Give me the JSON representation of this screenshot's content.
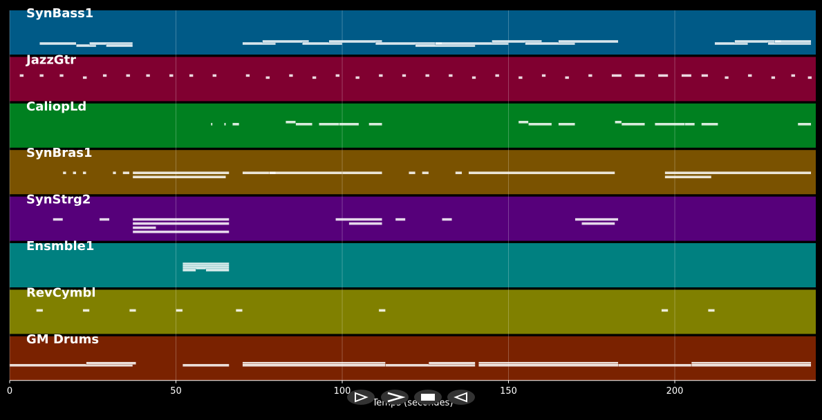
{
  "chart_data": {
    "type": "pianoroll",
    "xlabel": "Temps (secondes)",
    "xlim": [
      0,
      242.4
    ],
    "xticks": [
      0,
      50,
      100,
      150,
      200
    ],
    "grid": true,
    "tracks": [
      {
        "name": "SynBass1",
        "color": "#005a87",
        "notes": [
          [
            9,
            20,
            2
          ],
          [
            20,
            26,
            1
          ],
          [
            24,
            37,
            2
          ],
          [
            29,
            37,
            1
          ],
          [
            70,
            80,
            2
          ],
          [
            76,
            90,
            3
          ],
          [
            88,
            100,
            2
          ],
          [
            96,
            112,
            3
          ],
          [
            110,
            130,
            2
          ],
          [
            122,
            140,
            1
          ],
          [
            128,
            150,
            2
          ],
          [
            145,
            160,
            3
          ],
          [
            155,
            170,
            2
          ],
          [
            165,
            183,
            3
          ],
          [
            212,
            222,
            2
          ],
          [
            218,
            232,
            3
          ],
          [
            228,
            241,
            2
          ],
          [
            230,
            241,
            3
          ]
        ]
      },
      {
        "name": "JazzGtr",
        "color": "#800030",
        "notes": [
          [
            3,
            4.2,
            9
          ],
          [
            9,
            10.2,
            9
          ],
          [
            15,
            16.2,
            9
          ],
          [
            22,
            23.2,
            8
          ],
          [
            28,
            29.2,
            9
          ],
          [
            35,
            36.2,
            9
          ],
          [
            41,
            42.2,
            9
          ],
          [
            48,
            49.2,
            9
          ],
          [
            54,
            55.2,
            9
          ],
          [
            61,
            62.2,
            9
          ],
          [
            71,
            72.2,
            9
          ],
          [
            77,
            78.2,
            8
          ],
          [
            84,
            85.2,
            9
          ],
          [
            91,
            92.2,
            8
          ],
          [
            98,
            99.2,
            9
          ],
          [
            104,
            105.2,
            8
          ],
          [
            111,
            112.2,
            9
          ],
          [
            118,
            119.2,
            9
          ],
          [
            125,
            126.2,
            9
          ],
          [
            132,
            133.2,
            9
          ],
          [
            139,
            140.2,
            8
          ],
          [
            146,
            147.2,
            9
          ],
          [
            153,
            154.2,
            8
          ],
          [
            160,
            161.2,
            9
          ],
          [
            167,
            168.2,
            8
          ],
          [
            174,
            175.2,
            9
          ],
          [
            181,
            184,
            9
          ],
          [
            188,
            191,
            9
          ],
          [
            195,
            198,
            9
          ],
          [
            202,
            205,
            9
          ],
          [
            208,
            210,
            9
          ],
          [
            215,
            216.2,
            8
          ],
          [
            222,
            223.2,
            9
          ],
          [
            229,
            230.2,
            8
          ],
          [
            235,
            236.2,
            9
          ],
          [
            240,
            241.2,
            8
          ]
        ]
      },
      {
        "name": "CaliopLd",
        "color": "#008020",
        "notes": [
          [
            60.5,
            61,
            8
          ],
          [
            64.5,
            65,
            8
          ],
          [
            67,
            69,
            8
          ],
          [
            83,
            86,
            9
          ],
          [
            86,
            91,
            8
          ],
          [
            93,
            99,
            8
          ],
          [
            99,
            105,
            8
          ],
          [
            108,
            112,
            8
          ],
          [
            153,
            156,
            9
          ],
          [
            156,
            163,
            8
          ],
          [
            165,
            170,
            8
          ],
          [
            182,
            184,
            9
          ],
          [
            184,
            191,
            8
          ],
          [
            194,
            203,
            8
          ],
          [
            203,
            206,
            8
          ],
          [
            208,
            213,
            8
          ],
          [
            237,
            241,
            8
          ]
        ]
      },
      {
        "name": "SynBras1",
        "color": "#7a5200",
        "notes": [
          [
            16,
            17,
            7
          ],
          [
            19,
            20,
            7
          ],
          [
            22,
            23,
            7
          ],
          [
            31,
            32,
            7
          ],
          [
            34,
            36,
            7
          ],
          [
            37,
            65,
            5
          ],
          [
            37,
            66,
            7
          ],
          [
            70,
            80,
            7
          ],
          [
            78,
            100,
            7
          ],
          [
            100,
            112,
            7
          ],
          [
            120,
            122,
            7
          ],
          [
            124,
            126,
            7
          ],
          [
            134,
            136,
            7
          ],
          [
            138,
            182,
            7
          ],
          [
            197,
            211,
            5
          ],
          [
            197,
            241,
            7
          ]
        ]
      },
      {
        "name": "SynStrg2",
        "color": "#56007a",
        "notes": [
          [
            13,
            16,
            7
          ],
          [
            27,
            30,
            7
          ],
          [
            37,
            66,
            7
          ],
          [
            37,
            66,
            5
          ],
          [
            37,
            44,
            3
          ],
          [
            37,
            66,
            1
          ],
          [
            98,
            112,
            7
          ],
          [
            102,
            112,
            5
          ],
          [
            116,
            119,
            7
          ],
          [
            130,
            133,
            7
          ],
          [
            170,
            183,
            7
          ],
          [
            172,
            182,
            5
          ]
        ]
      },
      {
        "name": "Ensmble1",
        "color": "#008080",
        "notes": [
          [
            52,
            66,
            8
          ],
          [
            52,
            66,
            7
          ],
          [
            52,
            66,
            6
          ],
          [
            52,
            56,
            5
          ],
          [
            59,
            66,
            5
          ]
        ]
      },
      {
        "name": "RevCymbl",
        "color": "#808000",
        "notes": [
          [
            8,
            10,
            8
          ],
          [
            22,
            24,
            8
          ],
          [
            36,
            38,
            8
          ],
          [
            50,
            52,
            8
          ],
          [
            68,
            70,
            8
          ],
          [
            111,
            113,
            8
          ],
          [
            196,
            198,
            8
          ],
          [
            210,
            212,
            8
          ]
        ]
      },
      {
        "name": "GM Drums",
        "color": "#7a2200",
        "notes": [
          [
            0,
            37,
            4
          ],
          [
            23,
            38,
            5
          ],
          [
            52,
            66,
            4
          ],
          [
            70,
            113,
            5
          ],
          [
            70,
            113,
            4
          ],
          [
            113,
            140,
            4
          ],
          [
            126,
            140,
            5
          ],
          [
            141,
            183,
            5
          ],
          [
            141,
            183,
            4
          ],
          [
            183,
            205,
            4
          ],
          [
            205,
            241,
            5
          ],
          [
            205,
            241,
            4
          ]
        ]
      }
    ]
  }
}
